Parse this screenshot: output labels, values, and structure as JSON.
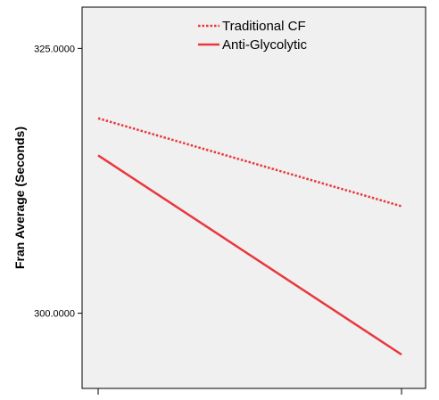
{
  "chart_data": {
    "type": "line",
    "title": "",
    "xlabel": "",
    "ylabel": "Fran Average (Seconds)",
    "categories": [
      "",
      ""
    ],
    "yticks": [
      300,
      325
    ],
    "ytick_labels": [
      "300.0000",
      "325.0000"
    ],
    "ylim": [
      292.9,
      328.9
    ],
    "grid": false,
    "legend_position": "top-center",
    "series": [
      {
        "name": "Traditional CF",
        "values": [
          318.4,
          310.1
        ],
        "color": "#e8383d",
        "line_style": "dotted"
      },
      {
        "name": "Anti-Glycolytic",
        "values": [
          314.9,
          296.1
        ],
        "color": "#e8383d",
        "line_style": "solid"
      }
    ]
  }
}
